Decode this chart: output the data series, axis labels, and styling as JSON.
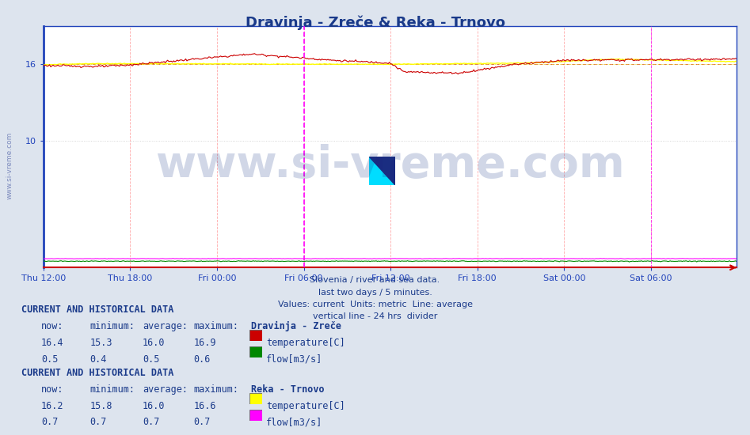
{
  "title": "Dravinja - Zreče & Reka - Trnovo",
  "title_color": "#1a3a8a",
  "bg_color": "#dde4ee",
  "plot_bg_color": "#ffffff",
  "fig_size": [
    9.47,
    5.5
  ],
  "dpi": 100,
  "y_min": 0,
  "y_max": 19,
  "y_ticks": [
    10,
    16
  ],
  "x_tick_labels": [
    "Thu 12:00",
    "Thu 18:00",
    "Fri 00:00",
    "Fri 06:00",
    "Fri 12:00",
    "Fri 18:00",
    "Sat 00:00",
    "Sat 06:00"
  ],
  "watermark": "www.si-vreme.com",
  "watermark_color": "#1a3a8a",
  "info_lines": [
    "Slovenia / river and sea data.",
    "last two days / 5 minutes.",
    "Values: current  Units: metric  Line: average",
    "vertical line - 24 hrs  divider"
  ],
  "dravinja_temp_color": "#cc0000",
  "dravinja_flow_color": "#008800",
  "reka_temp_color": "#ffff00",
  "reka_flow_color": "#ff00ff",
  "divider_color": "#ff00ff",
  "grid_h_color": "#cccccc",
  "grid_v_color": "#ffaaaa",
  "spine_color": "#2244bb",
  "tick_color": "#2244bb",
  "data_table_1": {
    "title": "CURRENT AND HISTORICAL DATA",
    "station": "Dravinja - Zreče",
    "headers": [
      "now:",
      "minimum:",
      "average:",
      "maximum:"
    ],
    "temp_values": [
      "16.4",
      "15.3",
      "16.0",
      "16.9"
    ],
    "flow_values": [
      "0.5",
      "0.4",
      "0.5",
      "0.6"
    ],
    "temp_label": "temperature[C]",
    "flow_label": "flow[m3/s]",
    "temp_color": "#cc0000",
    "flow_color": "#008800"
  },
  "data_table_2": {
    "title": "CURRENT AND HISTORICAL DATA",
    "station": "Reka - Trnovo",
    "headers": [
      "now:",
      "minimum:",
      "average:",
      "maximum:"
    ],
    "temp_values": [
      "16.2",
      "15.8",
      "16.0",
      "16.6"
    ],
    "flow_values": [
      "0.7",
      "0.7",
      "0.7",
      "0.7"
    ],
    "temp_label": "temperature[C]",
    "flow_label": "flow[m3/s]",
    "temp_color": "#ffff00",
    "flow_color": "#ff00ff"
  }
}
